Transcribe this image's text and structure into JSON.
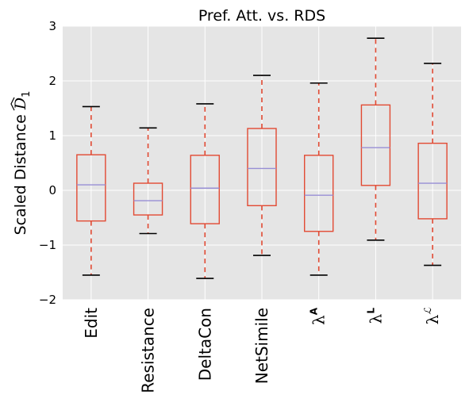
{
  "chart_data": {
    "type": "box",
    "title": "Pref. Att. vs. RDS",
    "ylabel": "Scaled Distance",
    "ylabel_symbol": "D",
    "ylabel_subscript": "1",
    "xlabel": "",
    "ylim": [
      -2,
      3
    ],
    "yticks": [
      -2,
      -1,
      0,
      1,
      2,
      3
    ],
    "ytick_labels": [
      "−2",
      "−1",
      "0",
      "1",
      "2",
      "3"
    ],
    "grid": true,
    "categories": [
      "Edit",
      "Resistance",
      "DeltaCon",
      "NetSimile",
      "λ",
      "λ",
      "λ"
    ],
    "category_superscripts": [
      "",
      "",
      "",
      "",
      "A",
      "L",
      "ℒ"
    ],
    "boxes": [
      {
        "whisker_low": -1.55,
        "q1": -0.56,
        "median": 0.1,
        "q3": 0.65,
        "whisker_high": 1.53
      },
      {
        "whisker_low": -0.79,
        "q1": -0.45,
        "median": -0.19,
        "q3": 0.13,
        "whisker_high": 1.14
      },
      {
        "whisker_low": -1.61,
        "q1": -0.61,
        "median": 0.04,
        "q3": 0.64,
        "whisker_high": 1.58
      },
      {
        "whisker_low": -1.19,
        "q1": -0.28,
        "median": 0.4,
        "q3": 1.13,
        "whisker_high": 2.1
      },
      {
        "whisker_low": -1.55,
        "q1": -0.75,
        "median": -0.09,
        "q3": 0.64,
        "whisker_high": 1.96
      },
      {
        "whisker_low": -0.91,
        "q1": 0.09,
        "median": 0.78,
        "q3": 1.56,
        "whisker_high": 2.78
      },
      {
        "whisker_low": -1.37,
        "q1": -0.52,
        "median": 0.13,
        "q3": 0.86,
        "whisker_high": 2.32
      }
    ],
    "colors": {
      "box": "#e24a33",
      "whisker": "#e24a33",
      "cap": "#000000",
      "median": "#988ed5",
      "axes_bg": "#e5e5e5",
      "grid": "#ffffff"
    }
  }
}
